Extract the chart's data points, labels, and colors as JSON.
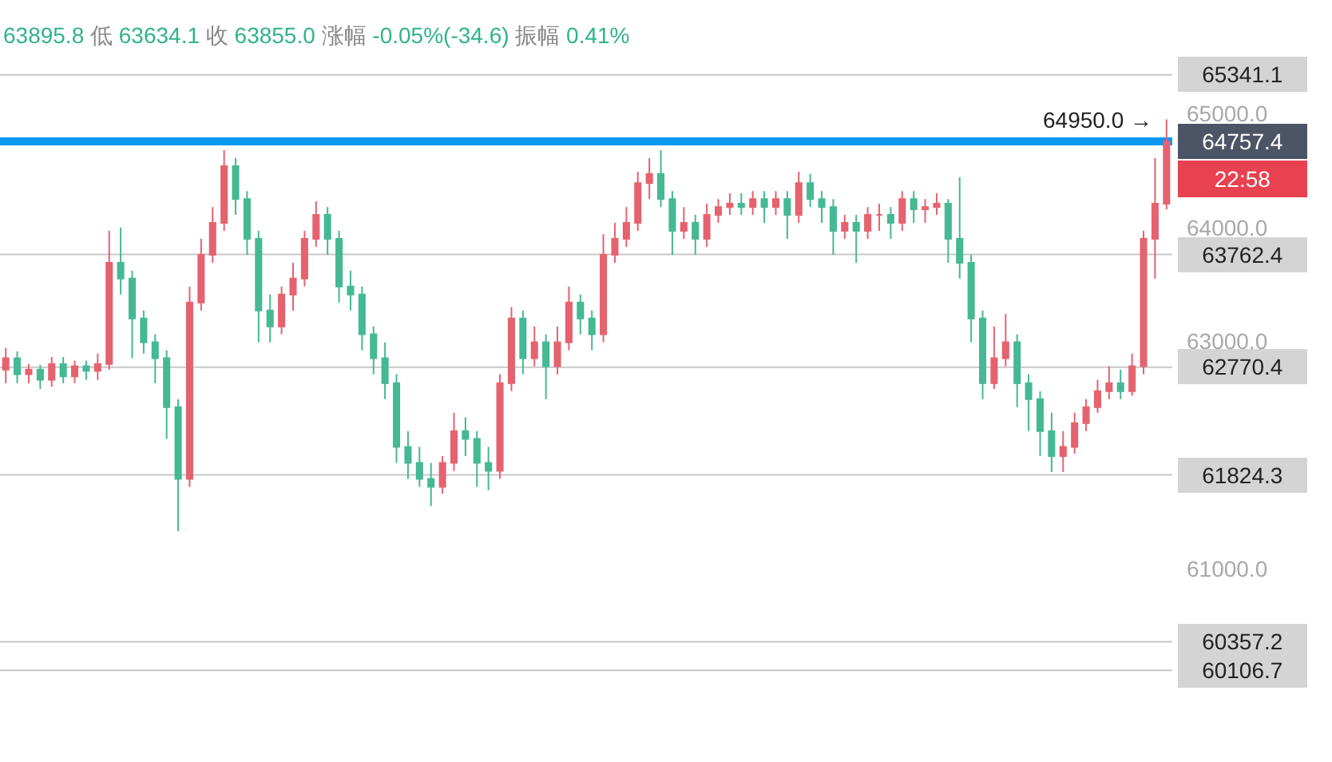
{
  "chart_data": {
    "type": "candlestick",
    "annotations": [
      "63895.8 低 63634.1 收 63855.0 涨幅 -0.05%(-34.6) 振幅 0.41%",
      "64950.0 →",
      "22:58"
    ],
    "categories": [
      null,
      null,
      null,
      null,
      null,
      null,
      null,
      null,
      null,
      null,
      null,
      null,
      null,
      null,
      null,
      null,
      null,
      null,
      null,
      null,
      null,
      null,
      null,
      null,
      null,
      null,
      null,
      null,
      null,
      null,
      null,
      null,
      null,
      null,
      null,
      null,
      null,
      null,
      null,
      null,
      null,
      null,
      null,
      null,
      null,
      null,
      null,
      null,
      null,
      null,
      null,
      null,
      null,
      null,
      null,
      null,
      null,
      null,
      null,
      null,
      null,
      null,
      null,
      null,
      null,
      null,
      null,
      null,
      null,
      null,
      null,
      null,
      null,
      null,
      null,
      null,
      null,
      null,
      null,
      null,
      null,
      null,
      null,
      null,
      null,
      null,
      null,
      null,
      null,
      null,
      null,
      null,
      null,
      null,
      null,
      null,
      null,
      null,
      null,
      null,
      null,
      null
    ],
    "ohlc": [
      [
        62750,
        62940,
        62630,
        62850
      ],
      [
        62850,
        62910,
        62630,
        62710
      ],
      [
        62710,
        62800,
        62630,
        62750
      ],
      [
        62750,
        62790,
        62580,
        62660
      ],
      [
        62660,
        62860,
        62600,
        62800
      ],
      [
        62800,
        62860,
        62630,
        62690
      ],
      [
        62690,
        62830,
        62630,
        62780
      ],
      [
        62780,
        62830,
        62660,
        62740
      ],
      [
        62740,
        62890,
        62660,
        62800
      ],
      [
        62800,
        63970,
        62750,
        63690
      ],
      [
        63690,
        64000,
        63410,
        63550
      ],
      [
        63550,
        63620,
        62850,
        63200
      ],
      [
        63200,
        63270,
        62890,
        62990
      ],
      [
        62990,
        63060,
        62630,
        62850
      ],
      [
        62850,
        62920,
        62140,
        62420
      ],
      [
        62420,
        62490,
        61330,
        61790
      ],
      [
        61790,
        63480,
        61720,
        63340
      ],
      [
        63340,
        63900,
        63270,
        63760
      ],
      [
        63760,
        64180,
        63690,
        64040
      ],
      [
        64040,
        64680,
        63970,
        64540
      ],
      [
        64540,
        64610,
        64110,
        64250
      ],
      [
        64250,
        64320,
        63760,
        63900
      ],
      [
        63900,
        63970,
        62990,
        63270
      ],
      [
        63270,
        63410,
        62990,
        63130
      ],
      [
        63130,
        63480,
        63060,
        63410
      ],
      [
        63410,
        63690,
        63270,
        63550
      ],
      [
        63550,
        63970,
        63480,
        63900
      ],
      [
        63900,
        64230,
        63830,
        64110
      ],
      [
        64110,
        64180,
        63760,
        63900
      ],
      [
        63900,
        63970,
        63340,
        63480
      ],
      [
        63480,
        63620,
        63270,
        63410
      ],
      [
        63410,
        63480,
        62920,
        63060
      ],
      [
        63060,
        63130,
        62710,
        62850
      ],
      [
        62850,
        62990,
        62490,
        62630
      ],
      [
        62630,
        62710,
        61930,
        62070
      ],
      [
        62070,
        62210,
        61790,
        61930
      ],
      [
        61930,
        62070,
        61720,
        61790
      ],
      [
        61790,
        61930,
        61550,
        61720
      ],
      [
        61720,
        61990,
        61660,
        61930
      ],
      [
        61930,
        62370,
        61860,
        62210
      ],
      [
        62210,
        62330,
        61990,
        62140
      ],
      [
        62140,
        62210,
        61720,
        61930
      ],
      [
        61930,
        62070,
        61690,
        61860
      ],
      [
        61860,
        62710,
        61790,
        62630
      ],
      [
        62630,
        63300,
        62560,
        63200
      ],
      [
        63200,
        63270,
        62710,
        62850
      ],
      [
        62850,
        63130,
        62780,
        62990
      ],
      [
        62990,
        63060,
        62490,
        62780
      ],
      [
        62780,
        63130,
        62710,
        62990
      ],
      [
        62990,
        63480,
        62920,
        63340
      ],
      [
        63340,
        63410,
        63060,
        63200
      ],
      [
        63200,
        63270,
        62920,
        63060
      ],
      [
        63060,
        63940,
        62990,
        63760
      ],
      [
        63760,
        64040,
        63690,
        63900
      ],
      [
        63900,
        64180,
        63830,
        64040
      ],
      [
        64040,
        64490,
        63970,
        64390
      ],
      [
        64390,
        64610,
        64250,
        64470
      ],
      [
        64470,
        64680,
        64180,
        64250
      ],
      [
        64250,
        64320,
        63760,
        63970
      ],
      [
        63970,
        64180,
        63900,
        64040
      ],
      [
        64040,
        64110,
        63760,
        63900
      ],
      [
        63900,
        64210,
        63830,
        64110
      ],
      [
        64110,
        64250,
        64040,
        64180
      ],
      [
        64180,
        64300,
        64110,
        64210
      ],
      [
        64210,
        64300,
        64110,
        64180
      ],
      [
        64180,
        64320,
        64110,
        64250
      ],
      [
        64250,
        64320,
        64040,
        64180
      ],
      [
        64180,
        64320,
        64110,
        64250
      ],
      [
        64250,
        64320,
        63900,
        64110
      ],
      [
        64110,
        64490,
        64040,
        64390
      ],
      [
        64390,
        64470,
        64180,
        64250
      ],
      [
        64250,
        64320,
        64040,
        64180
      ],
      [
        64180,
        64250,
        63760,
        63970
      ],
      [
        63970,
        64110,
        63900,
        64040
      ],
      [
        64040,
        64110,
        63690,
        63970
      ],
      [
        63970,
        64180,
        63900,
        64110
      ],
      [
        64110,
        64210,
        63970,
        64110
      ],
      [
        64110,
        64180,
        63900,
        64040
      ],
      [
        64040,
        64320,
        63970,
        64250
      ],
      [
        64250,
        64320,
        64040,
        64160
      ],
      [
        64160,
        64250,
        64040,
        64180
      ],
      [
        64180,
        64300,
        64110,
        64210
      ],
      [
        64210,
        64250,
        63690,
        63900
      ],
      [
        63900,
        64440,
        63550,
        63690
      ],
      [
        63690,
        63760,
        62990,
        63200
      ],
      [
        63200,
        63270,
        62490,
        62630
      ],
      [
        62630,
        63130,
        62580,
        62850
      ],
      [
        62850,
        63240,
        62780,
        62990
      ],
      [
        62990,
        63060,
        62420,
        62630
      ],
      [
        62630,
        62710,
        62210,
        62490
      ],
      [
        62490,
        62560,
        61990,
        62210
      ],
      [
        62210,
        62370,
        61850,
        61990
      ],
      [
        61990,
        62210,
        61850,
        62070
      ],
      [
        62070,
        62370,
        62010,
        62280
      ],
      [
        62280,
        62490,
        62210,
        62420
      ],
      [
        62420,
        62660,
        62370,
        62560
      ],
      [
        62560,
        62780,
        62490,
        62630
      ],
      [
        62630,
        62750,
        62490,
        62560
      ],
      [
        62560,
        62890,
        62520,
        62780
      ],
      [
        62780,
        63970,
        62710,
        63900
      ],
      [
        63900,
        64610,
        63550,
        64210
      ],
      [
        64210,
        64950,
        64160,
        64757.4
      ]
    ],
    "colors": [
      "#e5626f",
      "#45b894",
      "#e5626f",
      "#45b894",
      "#e5626f",
      "#45b894",
      "#e5626f",
      "#45b894",
      "#e5626f",
      "#e5626f",
      "#45b894",
      "#45b894",
      "#45b894",
      "#45b894",
      "#45b894",
      "#45b894",
      "#e5626f",
      "#e5626f",
      "#e5626f",
      "#e5626f",
      "#45b894",
      "#45b894",
      "#45b894",
      "#45b894",
      "#e5626f",
      "#e5626f",
      "#e5626f",
      "#e5626f",
      "#45b894",
      "#45b894",
      "#45b894",
      "#45b894",
      "#45b894",
      "#45b894",
      "#45b894",
      "#45b894",
      "#45b894",
      "#45b894",
      "#e5626f",
      "#e5626f",
      "#45b894",
      "#45b894",
      "#45b894",
      "#e5626f",
      "#e5626f",
      "#45b894",
      "#e5626f",
      "#45b894",
      "#e5626f",
      "#e5626f",
      "#45b894",
      "#45b894",
      "#e5626f",
      "#e5626f",
      "#e5626f",
      "#e5626f",
      "#e5626f",
      "#45b894",
      "#45b894",
      "#e5626f",
      "#45b894",
      "#e5626f",
      "#e5626f",
      "#e5626f",
      "#45b894",
      "#e5626f",
      "#45b894",
      "#e5626f",
      "#45b894",
      "#e5626f",
      "#45b894",
      "#45b894",
      "#45b894",
      "#e5626f",
      "#45b894",
      "#e5626f",
      "#e5626f",
      "#45b894",
      "#e5626f",
      "#45b894",
      "#e5626f",
      "#e5626f",
      "#45b894",
      "#45b894",
      "#45b894",
      "#45b894",
      "#e5626f",
      "#e5626f",
      "#45b894",
      "#45b894",
      "#45b894",
      "#45b894",
      "#e5626f",
      "#e5626f",
      "#e5626f",
      "#e5626f",
      "#e5626f",
      "#45b894",
      "#e5626f",
      "#e5626f",
      "#e5626f",
      "#e5626f"
    ],
    "ylim": [
      59300,
      66000
    ],
    "yticks": [
      {
        "value": 61000,
        "label": "61000.0"
      },
      {
        "value": 63000,
        "label": "63000.0"
      },
      {
        "value": 64000,
        "label": "64000.0"
      },
      {
        "value": 65000,
        "label": "65000.0"
      }
    ],
    "tick_labels": "y",
    "ref_lines": [
      {
        "axis": "y",
        "value": 65341.1,
        "label": "65341.1",
        "color": "#c8c8c8",
        "line_style": "solid"
      },
      {
        "axis": "y",
        "value": 63762.4,
        "label": "63762.4",
        "color": "#c8c8c8",
        "line_style": "solid"
      },
      {
        "axis": "y",
        "value": 62770.4,
        "label": "62770.4",
        "color": "#c8c8c8",
        "line_style": "solid"
      },
      {
        "axis": "y",
        "value": 61824.3,
        "label": "61824.3",
        "color": "#c8c8c8",
        "line_style": "solid"
      },
      {
        "axis": "y",
        "value": 60357.2,
        "label": "60357.2",
        "color": "#c8c8c8",
        "line_style": "solid"
      },
      {
        "axis": "y",
        "value": 60106.7,
        "label": "60106.7",
        "color": "#c8c8c8",
        "line_style": "solid"
      },
      {
        "axis": "y",
        "value": 64757.4,
        "label": "64757.4",
        "color": "#0a98f0",
        "line_style": "solid"
      }
    ],
    "grid": false
  }
}
